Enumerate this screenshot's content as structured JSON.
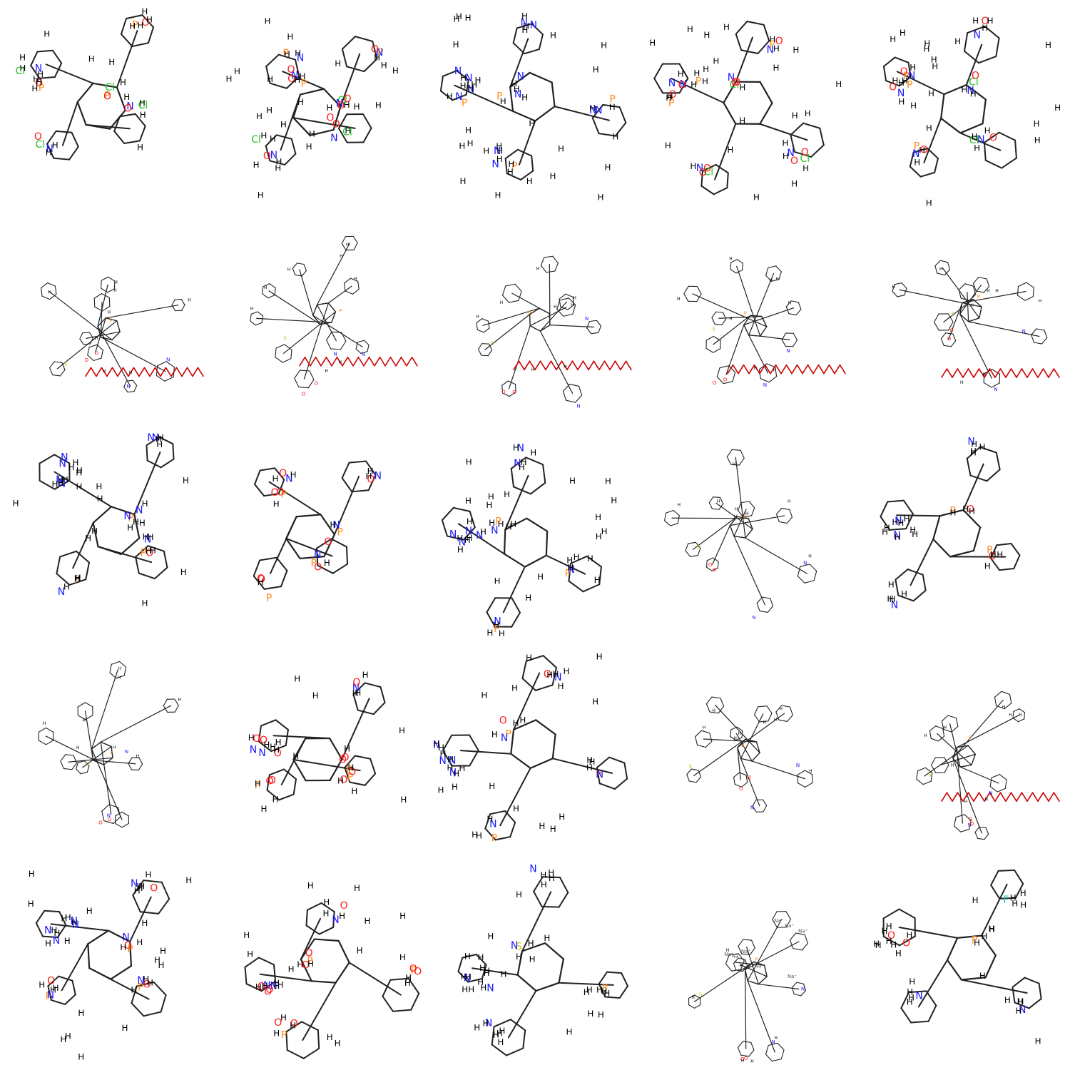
{
  "grid": {
    "rows": 5,
    "cols": 5
  },
  "colors": {
    "C": "#000000",
    "H": "#000000",
    "N": "#1a1aff",
    "O": "#ff1a1a",
    "P": "#ff8c1a",
    "Cl": "#22c322",
    "S": "#c6c600",
    "F": "#22c3c3",
    "Na": "#555555"
  },
  "cells": [
    {
      "kind": "detail",
      "labels": [
        "Cl",
        "Cl",
        "Cl",
        "Cl",
        "P",
        "P",
        "P",
        "N",
        "N",
        "N",
        "O",
        "O",
        "O",
        "O",
        "O",
        "H",
        "H",
        "H",
        "H",
        "H",
        "H",
        "H",
        "H",
        "H",
        "H",
        "H",
        "H",
        "H",
        "H",
        "H",
        "H",
        "H",
        "H",
        "H",
        "H"
      ]
    },
    {
      "kind": "detail",
      "labels": [
        "Cl",
        "Cl",
        "Cl",
        "P",
        "P",
        "P",
        "N",
        "N",
        "N",
        "N",
        "N",
        "N",
        "O",
        "O",
        "O",
        "O",
        "O",
        "O",
        "O",
        "O",
        "H",
        "H",
        "H",
        "H",
        "H",
        "H",
        "H",
        "H",
        "H",
        "H",
        "H",
        "H",
        "H",
        "H",
        "H",
        "H",
        "H",
        "H",
        "H",
        "H",
        "H",
        "H",
        "H",
        "H",
        "H",
        "H",
        "H",
        "H",
        "H",
        "H"
      ]
    },
    {
      "kind": "detail",
      "labels": [
        "P",
        "P",
        "P",
        "P",
        "N",
        "N",
        "N",
        "N",
        "N",
        "N",
        "N",
        "N",
        "N",
        "N",
        "N",
        "N",
        "H",
        "H",
        "H",
        "H",
        "H",
        "H",
        "H",
        "H",
        "H",
        "H",
        "H",
        "H",
        "H",
        "H",
        "H",
        "H",
        "H",
        "H",
        "H",
        "H",
        "H",
        "H",
        "H",
        "H",
        "H",
        "H",
        "H",
        "H",
        "H",
        "H",
        "H",
        "H",
        "H",
        "H",
        "H",
        "H",
        "H",
        "H",
        "H",
        "H"
      ]
    },
    {
      "kind": "detail",
      "labels": [
        "Cl",
        "Cl",
        "Cl",
        "P",
        "P",
        "P",
        "N",
        "N",
        "N",
        "N",
        "N",
        "N",
        "O",
        "O",
        "O",
        "O",
        "O",
        "O",
        "O",
        "O",
        "O",
        "H",
        "H",
        "H",
        "H",
        "H",
        "H",
        "H",
        "H",
        "H",
        "H",
        "H",
        "H",
        "H",
        "H",
        "H",
        "H",
        "H",
        "H",
        "H",
        "H",
        "H",
        "H",
        "H",
        "H",
        "H",
        "H",
        "H",
        "H",
        "H"
      ]
    },
    {
      "kind": "detail",
      "labels": [
        "Cl",
        "Cl",
        "P",
        "P",
        "P",
        "N",
        "N",
        "N",
        "N",
        "N",
        "N",
        "O",
        "O",
        "O",
        "O",
        "O",
        "O",
        "H",
        "H",
        "H",
        "H",
        "H",
        "H",
        "H",
        "H",
        "H",
        "H",
        "H",
        "H",
        "H",
        "H",
        "H",
        "H",
        "H",
        "H",
        "H",
        "H",
        "H",
        "H",
        "H",
        "H",
        "H",
        "H",
        "H",
        "H",
        "H",
        "H"
      ]
    },
    {
      "kind": "dense",
      "labels": [
        "P",
        "N",
        "N",
        "O",
        "O",
        "S",
        "H",
        "H",
        "H",
        "H",
        "H",
        "H",
        "H",
        "H"
      ]
    },
    {
      "kind": "dense",
      "labels": [
        "P",
        "N",
        "N",
        "O",
        "O",
        "S",
        "H",
        "H",
        "H",
        "H",
        "H",
        "H",
        "H",
        "H"
      ]
    },
    {
      "kind": "dense",
      "labels": [
        "P",
        "N",
        "N",
        "O",
        "O",
        "S",
        "H",
        "H",
        "H",
        "H",
        "H",
        "H",
        "H",
        "H"
      ]
    },
    {
      "kind": "dense",
      "labels": [
        "P",
        "N",
        "N",
        "O",
        "O",
        "S",
        "H",
        "H",
        "H",
        "H",
        "H",
        "H",
        "H",
        "H"
      ]
    },
    {
      "kind": "dense",
      "labels": [
        "P",
        "N",
        "N",
        "O",
        "O",
        "S",
        "H",
        "H",
        "H",
        "H",
        "H",
        "H",
        "H",
        "H"
      ]
    },
    {
      "kind": "detail",
      "labels": [
        "P",
        "P",
        "P",
        "N",
        "N",
        "N",
        "N",
        "N",
        "N",
        "N",
        "N",
        "N",
        "N",
        "O",
        "H",
        "H",
        "H",
        "H",
        "H",
        "H",
        "H",
        "H",
        "H",
        "H",
        "H",
        "H",
        "H",
        "H",
        "H",
        "H",
        "H",
        "H",
        "H",
        "H",
        "H",
        "H",
        "H",
        "H",
        "H",
        "H",
        "H",
        "H",
        "H",
        "H",
        "H"
      ]
    },
    {
      "kind": "detail",
      "labels": [
        "P",
        "P",
        "P",
        "P",
        "N",
        "N",
        "N",
        "N",
        "O",
        "O",
        "O",
        "O",
        "O",
        "O",
        "O",
        "O",
        "H",
        "H",
        "H",
        "H",
        "H",
        "H",
        "H",
        "H"
      ]
    },
    {
      "kind": "detail",
      "labels": [
        "P",
        "P",
        "P",
        "N",
        "N",
        "N",
        "N",
        "N",
        "N",
        "N",
        "N",
        "N",
        "H",
        "H",
        "H",
        "H",
        "H",
        "H",
        "H",
        "H",
        "H",
        "H",
        "H",
        "H",
        "H",
        "H",
        "H",
        "H",
        "H",
        "H",
        "H",
        "H",
        "H",
        "H",
        "H",
        "H",
        "H",
        "H",
        "H",
        "H",
        "H",
        "H",
        "H",
        "H",
        "H",
        "H",
        "H",
        "H"
      ]
    },
    {
      "kind": "dense",
      "labels": [
        "P",
        "N",
        "N",
        "O",
        "O",
        "S",
        "H",
        "H",
        "H",
        "H",
        "H",
        "H",
        "H",
        "H"
      ]
    },
    {
      "kind": "detail",
      "labels": [
        "P",
        "P",
        "N",
        "N",
        "N",
        "N",
        "O",
        "O",
        "H",
        "H",
        "H",
        "H",
        "H",
        "H",
        "H",
        "H",
        "H",
        "H",
        "H",
        "H",
        "H",
        "H",
        "H",
        "H",
        "H",
        "H",
        "H",
        "H",
        "H",
        "H"
      ]
    },
    {
      "kind": "dense",
      "labels": [
        "P",
        "N",
        "N",
        "O",
        "O",
        "S",
        "H",
        "H",
        "H",
        "H",
        "H",
        "H",
        "H",
        "H"
      ]
    },
    {
      "kind": "detail",
      "labels": [
        "P",
        "P",
        "P",
        "N",
        "N",
        "N",
        "O",
        "O",
        "O",
        "O",
        "O",
        "O",
        "O",
        "O",
        "O",
        "O",
        "H",
        "H",
        "H",
        "H",
        "H",
        "H",
        "H",
        "H",
        "H",
        "H",
        "H",
        "H",
        "H",
        "H",
        "H",
        "H",
        "H",
        "H",
        "H",
        "H"
      ]
    },
    {
      "kind": "detail",
      "labels": [
        "P",
        "P",
        "P",
        "N",
        "N",
        "N",
        "N",
        "N",
        "N",
        "N",
        "N",
        "O",
        "O",
        "H",
        "H",
        "H",
        "H",
        "H",
        "H",
        "H",
        "H",
        "H",
        "H",
        "H",
        "H",
        "H",
        "H",
        "H",
        "H",
        "H",
        "H",
        "H",
        "H",
        "H",
        "H",
        "H",
        "H",
        "H",
        "H",
        "H",
        "H",
        "H",
        "H",
        "H",
        "H"
      ]
    },
    {
      "kind": "dense",
      "labels": [
        "P",
        "N",
        "N",
        "O",
        "O",
        "S",
        "H",
        "H",
        "H",
        "H",
        "H",
        "H",
        "H",
        "H"
      ]
    },
    {
      "kind": "dense",
      "labels": [
        "P",
        "N",
        "N",
        "O",
        "O",
        "S",
        "H",
        "H",
        "H",
        "H",
        "H",
        "H",
        "H",
        "H"
      ]
    },
    {
      "kind": "detail",
      "labels": [
        "P",
        "P",
        "P",
        "N",
        "N",
        "N",
        "N",
        "N",
        "N",
        "N",
        "N",
        "O",
        "O",
        "O",
        "O",
        "H",
        "H",
        "H",
        "H",
        "H",
        "H",
        "H",
        "H",
        "H",
        "H",
        "H",
        "H",
        "H",
        "H",
        "H",
        "H",
        "H",
        "H",
        "H",
        "H",
        "H",
        "H",
        "H",
        "H",
        "H",
        "H",
        "H",
        "H",
        "H",
        "H",
        "H",
        "H",
        "H"
      ]
    },
    {
      "kind": "detail",
      "labels": [
        "P",
        "P",
        "P",
        "N",
        "N",
        "N",
        "O",
        "O",
        "O",
        "O",
        "O",
        "O",
        "O",
        "O",
        "O",
        "O",
        "H",
        "H",
        "H",
        "H",
        "H",
        "H",
        "H",
        "H",
        "H",
        "H",
        "H",
        "H",
        "H",
        "H",
        "H",
        "H",
        "H",
        "H",
        "H",
        "H",
        "H",
        "H",
        "H",
        "H",
        "H",
        "H"
      ]
    },
    {
      "kind": "detail",
      "labels": [
        "S",
        "P",
        "N",
        "N",
        "N",
        "N",
        "N",
        "H",
        "H",
        "H",
        "H",
        "H",
        "H",
        "H",
        "H",
        "H",
        "H",
        "H",
        "H",
        "H",
        "H",
        "H",
        "H",
        "H",
        "H",
        "H",
        "H",
        "H",
        "H",
        "H",
        "H",
        "H",
        "H",
        "H",
        "H",
        "H",
        "H",
        "H",
        "H",
        "H",
        "H",
        "H",
        "H"
      ]
    },
    {
      "kind": "dense",
      "labels": [
        "P",
        "N",
        "N",
        "O",
        "O",
        "S",
        "Na⁺",
        "Na⁺",
        "Na⁺",
        "Na⁺",
        "Na⁺",
        "Na⁺",
        "Na⁺",
        "Na⁺",
        "H",
        "H",
        "H",
        "H",
        "H",
        "H"
      ]
    },
    {
      "kind": "detail",
      "labels": [
        "P",
        "N",
        "N",
        "O",
        "O",
        "F",
        "H",
        "H",
        "H",
        "H",
        "H",
        "H",
        "H",
        "H",
        "H",
        "H",
        "H",
        "H",
        "H",
        "H",
        "H",
        "H",
        "H",
        "H",
        "H",
        "H",
        "H",
        "H",
        "H",
        "H",
        "H",
        "H",
        "H"
      ]
    }
  ]
}
